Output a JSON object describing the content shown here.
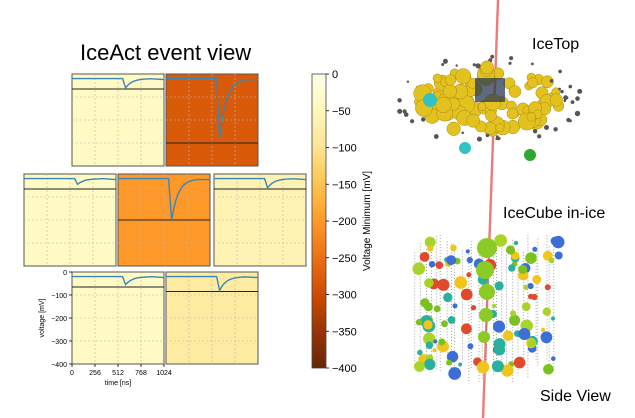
{
  "left": {
    "title": "IceAct event view",
    "panels": [
      {
        "id": "r1c1",
        "value_mv": -40,
        "min_mv": -60
      },
      {
        "id": "r1c2",
        "value_mv": -280,
        "min_mv": -280
      },
      {
        "id": "r2c1",
        "value_mv": -40,
        "min_mv": -45
      },
      {
        "id": "r2c2",
        "value_mv": -200,
        "min_mv": -200
      },
      {
        "id": "r2c3",
        "value_mv": -60,
        "min_mv": -60
      },
      {
        "id": "r3c1",
        "value_mv": -40,
        "min_mv": -55
      },
      {
        "id": "r3c2",
        "value_mv": -80,
        "min_mv": -80
      }
    ],
    "yticks": [
      "0",
      "−100",
      "−200",
      "−300",
      "−400"
    ],
    "ylabel": "voltage [mV]",
    "xticks": [
      "0",
      "256",
      "512",
      "768",
      "1024"
    ],
    "xlabel": "time [ns]",
    "colorbar": {
      "label": "Voltage Minimum [mV]",
      "ticks": [
        "0",
        "−50",
        "−100",
        "−150",
        "−200",
        "−250",
        "−300",
        "−350",
        "−400"
      ],
      "range": [
        0,
        -400
      ]
    }
  },
  "right": {
    "labels": {
      "icetop": "IceTop",
      "inice": "IceCube in-ice",
      "side": "Side View"
    }
  },
  "chart_data": {
    "type": "table",
    "title": "IceAct event view",
    "xlabel": "time [ns]",
    "ylabel": "voltage [mV]",
    "xlim": [
      0,
      1024
    ],
    "ylim": [
      -400,
      0
    ],
    "values": [
      -40,
      -280,
      -40,
      -200,
      -60,
      -40,
      -80
    ]
  }
}
